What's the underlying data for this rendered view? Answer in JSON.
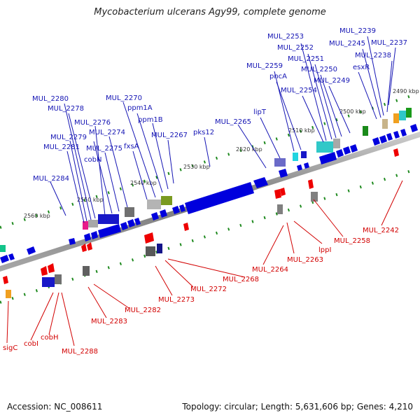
{
  "title": "Mycobacterium ulcerans Agy99, complete genome",
  "footer": {
    "accession": "Accession: NC_008611",
    "summary": "Topology: circular; Length: 5,631,606 bp; Genes: 4,210"
  },
  "colors": {
    "forward": "#0000dd",
    "reverse": "#ee0000",
    "backbone": "#808080",
    "tick": "#1f8a1f",
    "fwd_label": "#1414b4",
    "rev_label": "#d20000"
  },
  "scale_labels": [
    "2490 kbp",
    "2500 kbp",
    "2510 kbp",
    "2520 kbp",
    "2530 kbp",
    "2540 kbp",
    "2550 kbp",
    "2560 kbp"
  ],
  "forward_genes": [
    "MUL_2237",
    "MUL_2238",
    "MUL_2239",
    "MUL_2245",
    "esxR",
    "MUL_2249",
    "MUL_2250",
    "MUL_2251",
    "MUL_2252",
    "MUL_2253",
    "MUL_2254",
    "pncA",
    "MUL_2259",
    "lipT",
    "MUL_2265",
    "pks12",
    "MUL_2267",
    "ppm1B",
    "ppm1A",
    "MUL_2270",
    "fxsA",
    "MUL_2274",
    "MUL_2275",
    "cobN",
    "MUL_2276",
    "MUL_2278",
    "MUL_2280",
    "MUL_2279",
    "MUL_2281",
    "MUL_2284"
  ],
  "reverse_genes": [
    "MUL_2242",
    "MUL_2258",
    "lppI",
    "MUL_2263",
    "MUL_2264",
    "MUL_2268",
    "MUL_2272",
    "MUL_2273",
    "MUL_2282",
    "MUL_2283",
    "MUL_2288",
    "cobH",
    "cobI",
    "sigC"
  ]
}
